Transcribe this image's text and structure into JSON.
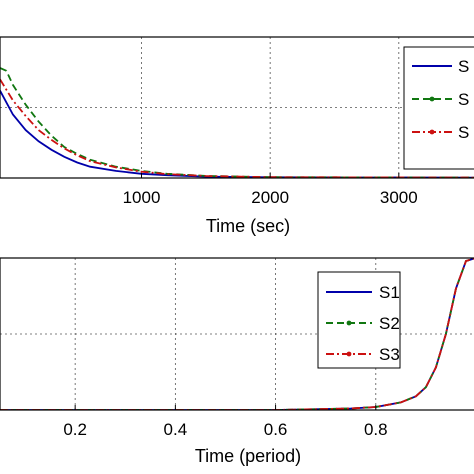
{
  "chart_data": [
    {
      "type": "line",
      "xlabel": "Time (sec)",
      "xlim": [
        -100,
        3600
      ],
      "ylim": [
        0,
        1
      ],
      "xticks": [
        1000,
        2000,
        3000
      ],
      "xtick_labels": [
        "1000",
        "2000",
        "3000"
      ],
      "grid": true,
      "legend": {
        "placement": "top-right",
        "entries": [
          "S",
          "S",
          "S"
        ]
      },
      "series": [
        {
          "color": "#0000aa",
          "style": "solid",
          "marker": "none",
          "x": [
            -100,
            0,
            100,
            200,
            300,
            400,
            500,
            600,
            800,
            1000,
            1200,
            1500,
            2000,
            3600
          ],
          "y": [
            0.62,
            0.45,
            0.34,
            0.26,
            0.2,
            0.15,
            0.11,
            0.08,
            0.05,
            0.03,
            0.02,
            0.01,
            0.005,
            0.003
          ]
        },
        {
          "color": "#117711",
          "style": "dashed",
          "marker": "dot",
          "x": [
            -100,
            -50,
            0,
            100,
            200,
            300,
            400,
            500,
            600,
            800,
            1000,
            1200,
            1500,
            2000,
            3600
          ],
          "y": [
            0.78,
            0.76,
            0.66,
            0.52,
            0.4,
            0.3,
            0.22,
            0.17,
            0.13,
            0.08,
            0.05,
            0.03,
            0.015,
            0.006,
            0.003
          ]
        },
        {
          "color": "#cc1111",
          "style": "dashdot",
          "marker": "dot",
          "x": [
            -100,
            0,
            100,
            200,
            300,
            400,
            500,
            600,
            800,
            1000,
            1200,
            1500,
            2000,
            3600
          ],
          "y": [
            0.7,
            0.55,
            0.44,
            0.34,
            0.27,
            0.21,
            0.16,
            0.12,
            0.075,
            0.045,
            0.028,
            0.014,
            0.006,
            0.003
          ]
        }
      ]
    },
    {
      "type": "line",
      "xlabel": "Time (period)",
      "xlim": [
        0.05,
        1.0
      ],
      "ylim": [
        0,
        1
      ],
      "xticks": [
        0.2,
        0.4,
        0.6,
        0.8
      ],
      "xtick_labels": [
        "0.2",
        "0.4",
        "0.6",
        "0.8"
      ],
      "grid": true,
      "legend": {
        "placement": "top-right",
        "entries": [
          "S1",
          "S2",
          "S3"
        ]
      },
      "series": [
        {
          "name": "S1",
          "color": "#0000aa",
          "style": "solid",
          "marker": "none",
          "x": [
            0.05,
            0.3,
            0.6,
            0.75,
            0.8,
            0.85,
            0.88,
            0.9,
            0.92,
            0.94,
            0.96,
            0.98,
            1.0
          ],
          "y": [
            0.0,
            0.0,
            0.0,
            0.01,
            0.02,
            0.05,
            0.09,
            0.15,
            0.28,
            0.5,
            0.8,
            0.98,
            1.0
          ]
        },
        {
          "name": "S2",
          "color": "#117711",
          "style": "dashed",
          "marker": "dot",
          "x": [
            0.05,
            0.3,
            0.6,
            0.75,
            0.8,
            0.85,
            0.88,
            0.9,
            0.92,
            0.94,
            0.96,
            0.98,
            1.0
          ],
          "y": [
            0.0,
            0.0,
            0.0,
            0.01,
            0.02,
            0.05,
            0.09,
            0.15,
            0.28,
            0.5,
            0.8,
            0.98,
            1.0
          ]
        },
        {
          "name": "S3",
          "color": "#cc1111",
          "style": "dashdot",
          "marker": "dot",
          "x": [
            0.05,
            0.3,
            0.6,
            0.75,
            0.8,
            0.85,
            0.88,
            0.9,
            0.92,
            0.94,
            0.96,
            0.98,
            1.0
          ],
          "y": [
            0.0,
            0.0,
            0.0,
            0.01,
            0.02,
            0.05,
            0.09,
            0.15,
            0.28,
            0.5,
            0.8,
            0.98,
            1.0
          ]
        }
      ]
    }
  ]
}
